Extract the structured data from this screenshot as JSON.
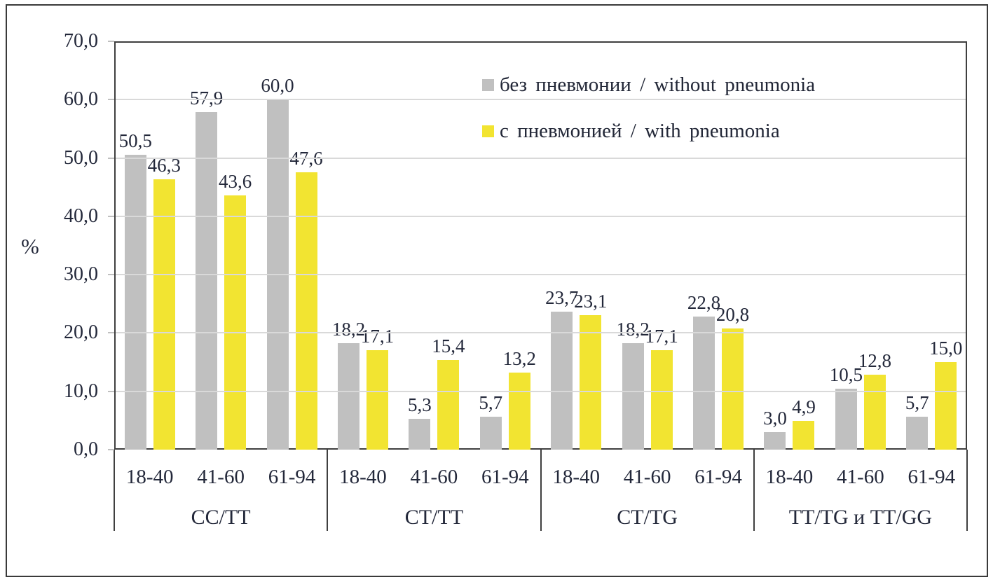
{
  "chart_data": {
    "type": "bar",
    "title": "",
    "ylabel": "%",
    "ylim": [
      0,
      70
    ],
    "ytick_step": 10,
    "y_tick_labels": [
      "70,0",
      "60,0",
      "50,0",
      "40,0",
      "30,0",
      "20,0",
      "10,0",
      "0,0"
    ],
    "grid": true,
    "legend_position": "top-right-inside",
    "groups": [
      "CC/TT",
      "CT/TT",
      "CT/TG",
      "TT/TG и TT/GG"
    ],
    "age_categories": [
      "18-40",
      "41-60",
      "61-94"
    ],
    "series": [
      {
        "name": "без пневмонии / without pneumonia",
        "color": "#c0c0c0",
        "values": [
          [
            50.5,
            57.9,
            60.0
          ],
          [
            18.2,
            5.3,
            5.7
          ],
          [
            23.7,
            18.2,
            22.8
          ],
          [
            3.0,
            10.5,
            5.7
          ]
        ],
        "labels": [
          [
            "50,5",
            "57,9",
            "60,0"
          ],
          [
            "18,2",
            "5,3",
            "5,7"
          ],
          [
            "23,7",
            "18,2",
            "22,8"
          ],
          [
            "3,0",
            "10,5",
            "5,7"
          ]
        ]
      },
      {
        "name": "с пневмонией / with pneumonia",
        "color": "#f2e431",
        "values": [
          [
            46.3,
            43.6,
            47.6
          ],
          [
            17.1,
            15.4,
            13.2
          ],
          [
            23.1,
            17.1,
            20.8
          ],
          [
            4.9,
            12.8,
            15.0
          ]
        ],
        "labels": [
          [
            "46,3",
            "43,6",
            "47,6"
          ],
          [
            "17,1",
            "15,4",
            "13,2"
          ],
          [
            "23,1",
            "17,1",
            "20,8"
          ],
          [
            "4,9",
            "12,8",
            "15,0"
          ]
        ]
      }
    ],
    "colors": {
      "grid": "#d9d9d9",
      "axis": "#3f3f3f",
      "tick": "#bfbfbf",
      "text": "#23283a",
      "frame": "#3a3a3a"
    }
  }
}
